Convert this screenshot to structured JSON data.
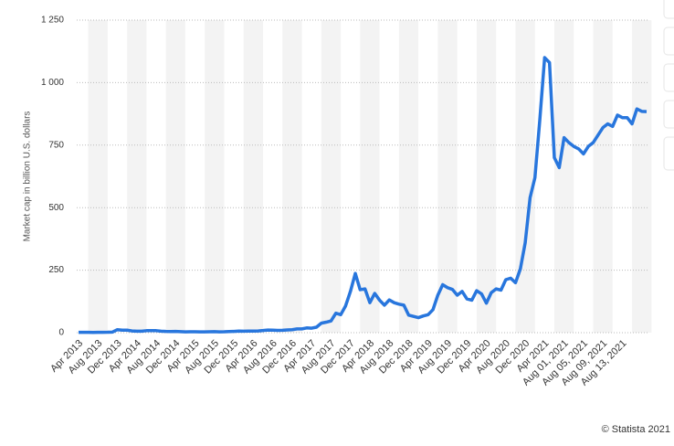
{
  "chart_data": {
    "type": "line",
    "y_axis_label": "Market cap in billion U.S. dollars",
    "source": "© Statista 2021",
    "categories": [
      "Apr 2013",
      null,
      null,
      null,
      "Aug 2013",
      null,
      null,
      null,
      "Dec 2013",
      null,
      null,
      null,
      "Apr 2014",
      null,
      null,
      null,
      "Aug 2014",
      null,
      null,
      null,
      "Dec 2014",
      null,
      null,
      null,
      "Apr 2015",
      null,
      null,
      null,
      "Aug 2015",
      null,
      null,
      null,
      "Dec 2015",
      null,
      null,
      null,
      "Apr 2016",
      null,
      null,
      null,
      "Aug 2016",
      null,
      null,
      null,
      "Dec 2016",
      null,
      null,
      null,
      "Apr 2017",
      null,
      null,
      null,
      "Aug 2017",
      null,
      null,
      null,
      "Dec 2017",
      null,
      null,
      null,
      "Apr 2018",
      null,
      null,
      null,
      "Aug 2018",
      null,
      null,
      null,
      "Dec 2018",
      null,
      null,
      null,
      "Apr 2019",
      null,
      null,
      null,
      "Aug 2019",
      null,
      null,
      null,
      "Dec 2019",
      null,
      null,
      null,
      "Apr 2020",
      null,
      null,
      null,
      "Aug 2020",
      null,
      null,
      null,
      "Dec 2020",
      null,
      null,
      null,
      "Apr 2021",
      null,
      null,
      null,
      "Aug 01, 2021",
      null,
      null,
      null,
      "Aug 05, 2021",
      null,
      null,
      null,
      "Aug 09, 2021",
      null,
      null,
      null,
      "Aug 13, 2021",
      null,
      null,
      null,
      null,
      null
    ],
    "values": [
      1.5,
      1.3,
      1.4,
      1.0,
      1.2,
      1.5,
      1.6,
      2.5,
      12,
      10,
      10,
      7,
      6,
      6,
      8,
      8,
      8,
      6,
      5,
      4.5,
      5,
      4,
      3,
      3.5,
      3.5,
      3.3,
      3.3,
      3.6,
      4,
      3.4,
      3.5,
      4.5,
      5,
      6.5,
      5.8,
      6.5,
      6.5,
      7,
      8.5,
      10.5,
      10,
      9,
      9.5,
      11,
      12,
      15,
      15,
      19,
      18,
      22,
      38,
      42,
      47,
      78,
      72,
      107,
      165,
      237,
      172,
      175,
      120,
      157,
      130,
      110,
      131,
      120,
      114,
      110,
      70,
      65,
      60,
      67,
      72,
      92,
      150,
      192,
      180,
      173,
      150,
      165,
      135,
      130,
      168,
      155,
      118,
      160,
      175,
      170,
      212,
      218,
      200,
      255,
      360,
      540,
      620,
      850,
      1100,
      1080,
      700,
      660,
      780,
      760,
      745,
      735,
      715,
      745,
      760,
      790,
      820,
      835,
      825,
      870,
      860,
      860,
      835,
      895,
      885,
      884
    ],
    "color": "#2876dd",
    "ylim": [
      0,
      1250
    ],
    "yticks": [
      0,
      250,
      500,
      750,
      {
        "value": 1000,
        "label": "1 000"
      },
      {
        "value": 1250,
        "label": "1 250"
      }
    ],
    "grid": true
  }
}
